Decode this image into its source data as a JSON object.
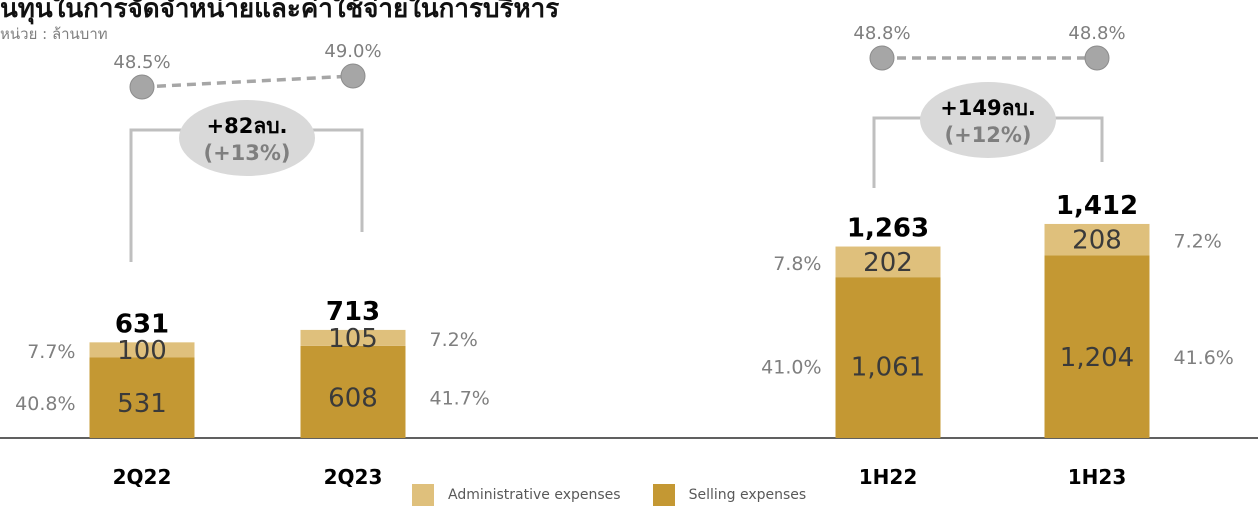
{
  "title": "นทุนในการจัดจำหน่ายและค่าใช้จ่ายในการบริหาร",
  "unit_label": "หน่วย : ล้านบาท",
  "colors": {
    "admin": "#dfc07c",
    "selling": "#c49833",
    "ratio_line": "#a6a6a6",
    "bubble": "#d9d9d9",
    "bracket": "#bfbfbf",
    "text_dark": "#000000",
    "text_grey": "#7f7f7f"
  },
  "chart_data": {
    "type": "bar",
    "stacked": true,
    "categories": [
      "2Q22",
      "2Q23",
      "1H22",
      "1H23"
    ],
    "series": [
      {
        "name": "Selling expenses",
        "values": [
          531,
          608,
          1061,
          1204
        ],
        "ratio_labels": [
          "40.8%",
          "41.7%",
          "41.0%",
          "41.6%"
        ]
      },
      {
        "name": "Administrative expenses",
        "values": [
          100,
          105,
          202,
          208
        ],
        "ratio_labels": [
          "7.7%",
          "7.2%",
          "7.8%",
          "7.2%"
        ]
      }
    ],
    "totals": [
      "631",
      "713",
      "1,263",
      "1,412"
    ],
    "selling_labels": [
      "531",
      "608",
      "1,061",
      "1,204"
    ],
    "admin_labels": [
      "100",
      "105",
      "202",
      "208"
    ],
    "line_ratios": [
      {
        "labels": [
          "48.5%",
          "49.0%"
        ],
        "values": [
          48.5,
          49.0
        ]
      },
      {
        "labels": [
          "48.8%",
          "48.8%"
        ],
        "values": [
          48.8,
          48.8
        ]
      }
    ],
    "changes": [
      {
        "amount": "+82ลบ.",
        "pct": "(+13%)"
      },
      {
        "amount": "+149ลบ.",
        "pct": "(+12%)"
      }
    ],
    "legend": [
      "Administrative expenses",
      "Selling expenses"
    ],
    "legend_position": "bottom"
  }
}
